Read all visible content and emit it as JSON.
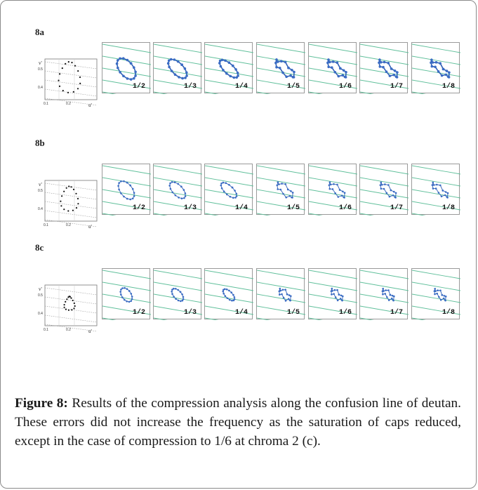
{
  "rows": [
    {
      "label": "8a",
      "ratios": [
        "1/2",
        "1/3",
        "1/4",
        "1/5",
        "1/6",
        "1/7",
        "1/8"
      ]
    },
    {
      "label": "8b",
      "ratios": [
        "1/2",
        "1/3",
        "1/4",
        "1/5",
        "1/6",
        "1/7",
        "1/8"
      ]
    },
    {
      "label": "8c",
      "ratios": [
        "1/2",
        "1/3",
        "1/4",
        "1/5",
        "1/6",
        "1/7",
        "1/8"
      ]
    }
  ],
  "reference_axes": {
    "y_label": "v'",
    "x_label": "u'",
    "y_ticks": [
      "0.5",
      "0.4"
    ],
    "x_ticks": [
      "0.1",
      "0.2"
    ]
  },
  "caption": {
    "label": "Figure 8:",
    "text": " Results of the compression analysis along the confusion line of deutan. These errors did not increase the frequency as the saturation of caps reduced, except in the case of compression to 1/6 at chroma 2 (c)."
  },
  "colors": {
    "line": "#2f5fb3",
    "point": "#3a6cc4",
    "confusion_line": "#5fbf9a"
  }
}
